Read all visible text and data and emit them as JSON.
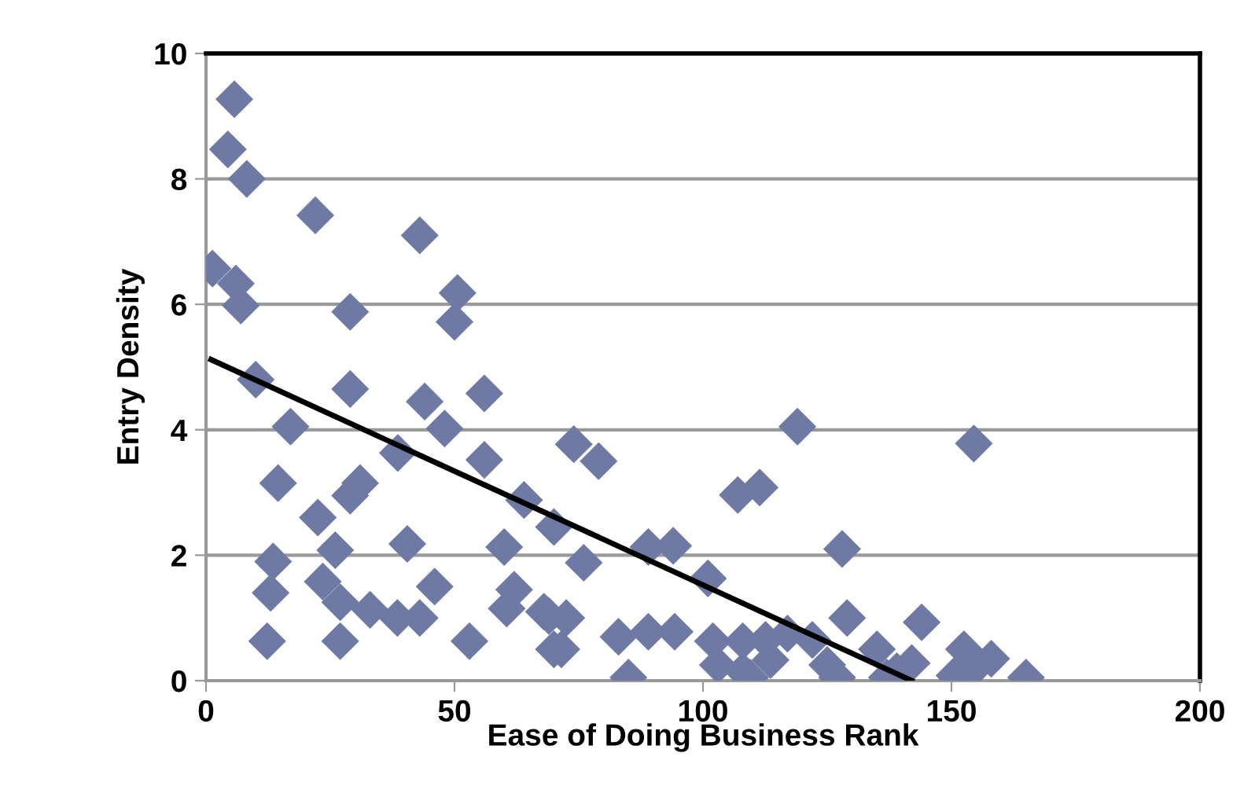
{
  "chart_data": {
    "type": "scatter",
    "xlabel": "Ease of Doing Business Rank",
    "ylabel": "Entry Density",
    "xlim": [
      0,
      200
    ],
    "xticks": [
      0,
      50,
      100,
      150,
      200
    ],
    "ylim": [
      0,
      10
    ],
    "yticks": [
      0,
      2,
      4,
      6,
      8,
      10
    ],
    "grid": "y",
    "series": [
      {
        "color": "#6e7aa3",
        "marker": "diamond",
        "x": [
          5.7,
          4.4,
          8.2,
          22,
          43,
          1.3,
          6,
          7,
          29,
          50.6,
          50,
          10,
          17,
          29,
          44,
          56,
          48,
          56,
          38.6,
          14.5,
          31,
          29,
          22.5,
          26,
          40.5,
          60,
          64,
          13.5,
          13,
          23.5,
          27,
          33,
          38.5,
          43,
          46,
          12.3,
          27,
          53,
          60.5,
          62,
          69,
          70,
          74,
          79,
          119,
          154.5,
          107,
          111.4,
          128,
          89,
          94,
          70,
          76,
          101,
          129,
          72.5,
          71.5,
          83,
          89,
          94.3,
          85,
          102,
          108,
          112.6,
          117,
          122,
          103,
          108,
          113.6,
          109.5,
          125,
          127,
          135,
          139,
          144,
          150.6,
          152.5,
          158,
          165,
          142,
          154.7,
          137,
          68
        ],
        "values": [
          9.27,
          8.47,
          8.0,
          7.42,
          7.1,
          6.57,
          6.33,
          5.98,
          5.88,
          6.18,
          5.72,
          4.8,
          4.05,
          4.65,
          4.45,
          4.58,
          4.02,
          3.52,
          3.63,
          3.15,
          3.15,
          2.95,
          2.6,
          2.08,
          2.18,
          2.13,
          2.88,
          1.9,
          1.4,
          1.58,
          1.25,
          1.13,
          1.0,
          1.0,
          1.5,
          0.63,
          0.63,
          0.63,
          1.15,
          1.45,
          1.03,
          0.5,
          3.77,
          3.5,
          4.05,
          3.78,
          2.96,
          3.08,
          2.1,
          2.13,
          2.15,
          2.45,
          1.88,
          1.63,
          1.0,
          1.0,
          0.5,
          0.7,
          0.78,
          0.78,
          0.05,
          0.63,
          0.63,
          0.65,
          0.75,
          0.65,
          0.25,
          0.15,
          0.33,
          0.05,
          0.25,
          0.05,
          0.5,
          0.15,
          0.93,
          0.08,
          0.5,
          0.35,
          0.05,
          0.28,
          0.2,
          0.05,
          1.1
        ]
      },
      {
        "type": "line",
        "color": "#000000",
        "marker": "none",
        "x": [
          1,
          142
        ],
        "values": [
          5.12,
          0
        ]
      }
    ]
  }
}
